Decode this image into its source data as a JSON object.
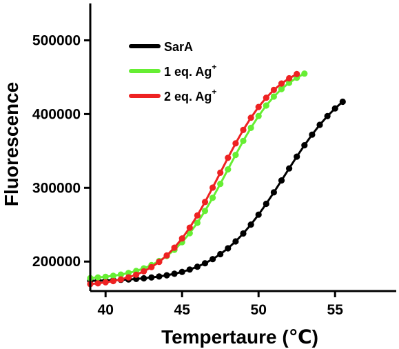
{
  "chart_data": {
    "type": "scatter",
    "xlabel": "Tempertaure (℃)",
    "ylabel": "Fluorescence",
    "xlim": [
      39,
      59
    ],
    "ylim": [
      160000,
      550000
    ],
    "xticks": [
      40,
      45,
      50,
      55
    ],
    "xtick_labels": [
      "40",
      "45",
      "50",
      "55"
    ],
    "yticks": [
      200000,
      300000,
      400000,
      500000
    ],
    "ytick_labels": [
      "200000",
      "300000",
      "400000",
      "500000"
    ],
    "grid": false,
    "legend_position": "top-left",
    "series": [
      {
        "name": "SarA",
        "legend_main": "SarA",
        "legend_sup": "",
        "color": "#000000",
        "params": {
          "x_start": 39,
          "x_end": 55.5,
          "step": 0.5,
          "y_low": 173000,
          "y_high": 460000,
          "midpoint": 51.7,
          "scale": 2.2
        }
      },
      {
        "name": "1 eq. Ag+",
        "legend_main": "1 eq. Ag",
        "legend_sup": "+",
        "color": "#66ee33",
        "params": {
          "x_start": 39,
          "x_end": 53,
          "step": 0.5,
          "y_low": 175000,
          "y_high": 475000,
          "midpoint": 48.0,
          "scale": 1.9
        }
      },
      {
        "name": "2 eq. Ag+",
        "legend_main": "2 eq. Ag",
        "legend_sup": "+",
        "color": "#ee2222",
        "params": {
          "x_start": 39,
          "x_end": 52.5,
          "step": 0.5,
          "y_low": 166000,
          "y_high": 475000,
          "midpoint": 47.5,
          "scale": 1.9
        }
      }
    ]
  }
}
